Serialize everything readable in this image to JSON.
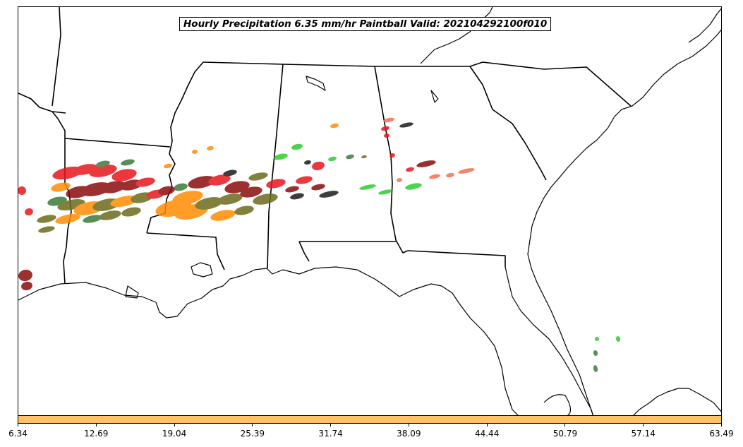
{
  "title": "Hourly Precipitation 6.35 mm/hr Paintball Valid: 202104292100f010",
  "colorbar": {
    "color": "#ffc266",
    "range": [
      6.34,
      63.49
    ],
    "ticks": [
      "6.34",
      "12.69",
      "19.04",
      "25.39",
      "31.74",
      "38.09",
      "44.44",
      "50.79",
      "57.14",
      "63.49"
    ]
  },
  "colors": {
    "red": "#e8141c",
    "dark_red": "#8b0a0a",
    "orange": "#ff8c00",
    "olive": "#6b6b1a",
    "green": "#2ecc2e",
    "dark_green": "#3c7a3c",
    "black": "#1a1a1a",
    "salmon": "#f07050",
    "lines": "#000000"
  }
}
